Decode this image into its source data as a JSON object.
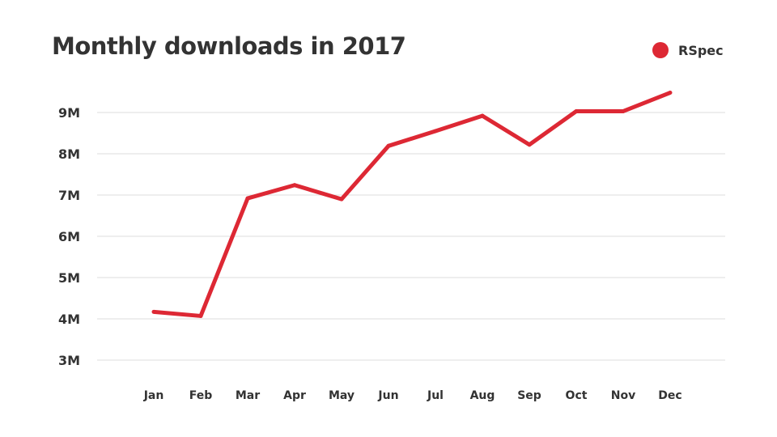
{
  "chart_data": {
    "type": "line",
    "title": "Monthly downloads in 2017",
    "xlabel": "",
    "ylabel": "",
    "categories": [
      "Jan",
      "Feb",
      "Mar",
      "Apr",
      "May",
      "Jun",
      "Jul",
      "Aug",
      "Sep",
      "Oct",
      "Nov",
      "Dec"
    ],
    "series": [
      {
        "name": "RSpec",
        "color": "#dd2834",
        "values": [
          4.17,
          4.07,
          6.92,
          7.24,
          6.9,
          8.19,
          8.55,
          8.92,
          8.22,
          9.03,
          9.03,
          9.48
        ]
      }
    ],
    "yticks": [
      3,
      4,
      5,
      6,
      7,
      8,
      9
    ],
    "ytick_labels": [
      "3M",
      "4M",
      "5M",
      "6M",
      "7M",
      "8M",
      "9M"
    ],
    "ylim": [
      3,
      9
    ],
    "unit": "millions",
    "grid": true,
    "legend_position": "top-right"
  }
}
